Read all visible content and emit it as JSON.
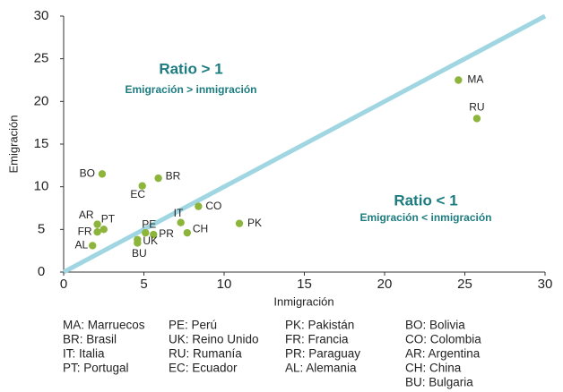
{
  "chart_data": {
    "type": "scatter",
    "x_label": "Inmigración",
    "y_label": "Emigración",
    "labels": [
      "MA",
      "RU",
      "PK",
      "CO",
      "CH",
      "IT",
      "BR",
      "BO",
      "EC",
      "AR",
      "PT",
      "FR",
      "PE",
      "PR",
      "UK",
      "BU",
      "AL"
    ],
    "x": [
      24.6,
      25.75,
      10.95,
      8.4,
      7.7,
      7.3,
      5.9,
      2.4,
      4.9,
      2.1,
      2.5,
      2.1,
      5.1,
      5.6,
      4.6,
      4.6,
      1.8
    ],
    "y": [
      22.5,
      18.0,
      5.7,
      7.7,
      4.6,
      5.8,
      11.0,
      11.5,
      10.1,
      5.6,
      5.0,
      4.7,
      4.6,
      4.4,
      3.8,
      3.4,
      3.1
    ],
    "color": "#8db53c",
    "reference_line": {
      "x": [
        0,
        30
      ],
      "y": [
        0,
        30
      ],
      "color": "#9fd6e2"
    },
    "xlim": [
      0,
      30
    ],
    "xticks": [
      0,
      5,
      10,
      15,
      20,
      25,
      30
    ],
    "ylim": [
      0,
      30
    ],
    "yticks": [
      0,
      5,
      10,
      15,
      20,
      25,
      30
    ],
    "annotations": [
      {
        "title": "Ratio > 1",
        "text": "Emigración > inmigración"
      },
      {
        "title": "Ratio < 1",
        "text": "Emigración < inmigración"
      }
    ],
    "footnote_columns": [
      [
        "MA: Marruecos",
        "BR: Brasil",
        "IT: Italia",
        "PT: Portugal"
      ],
      [
        "PE: Perú",
        "UK: Reino Unido",
        "RU: Rumanía",
        "EC: Ecuador"
      ],
      [
        "PK: Pakistán",
        "FR: Francia",
        "PR: Paraguay",
        "AL: Alemania"
      ],
      [
        "BO: Bolivia",
        "CO: Colombia",
        "AR: Argentina",
        "CH: China",
        "BU: Bulgaria"
      ]
    ]
  }
}
